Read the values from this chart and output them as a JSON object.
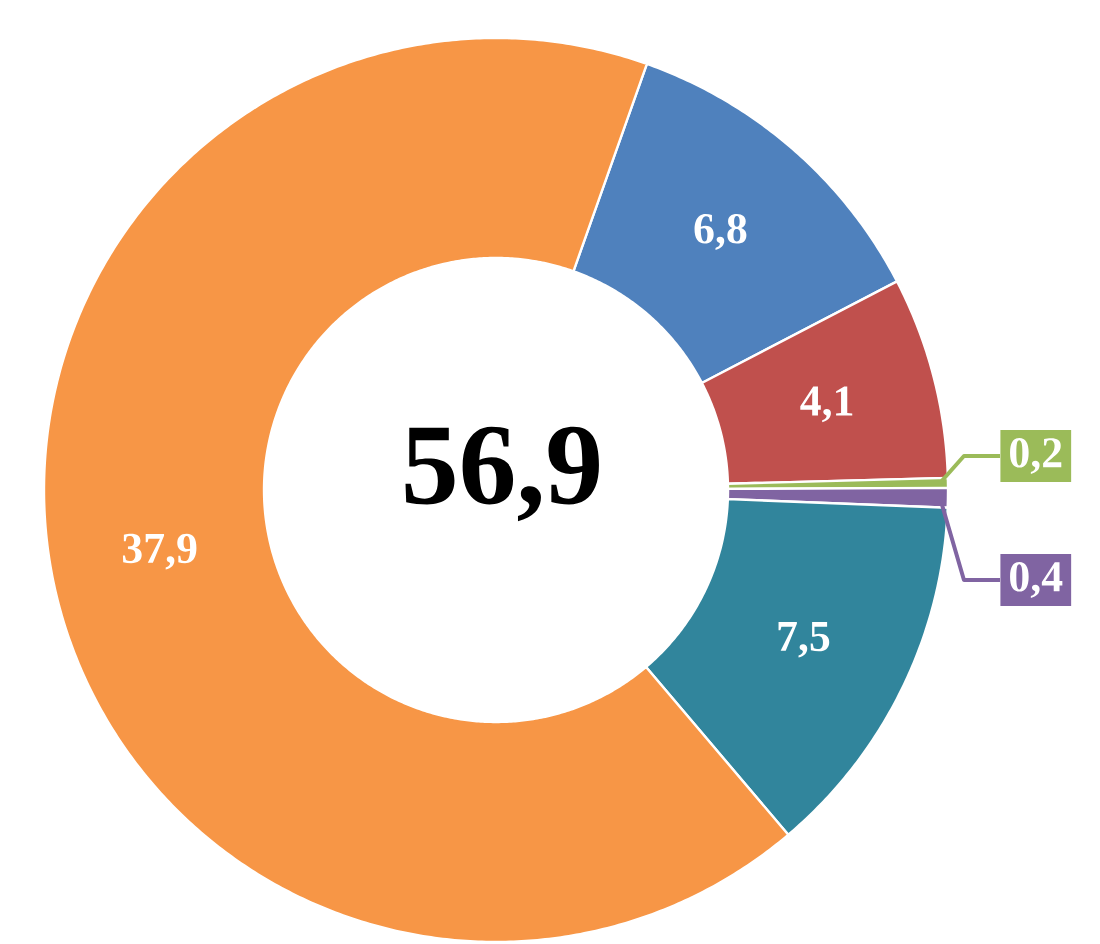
{
  "chart_data": {
    "type": "donut",
    "categories": [
      null,
      null,
      null,
      null,
      null,
      null
    ],
    "values": [
      6.8,
      4.1,
      0.2,
      0.4,
      7.5,
      37.9
    ],
    "colors": [
      "#4f81bd",
      "#c0504d",
      "#9bbb59",
      "#8064a2",
      "#31859c",
      "#f79646"
    ],
    "value_labels": [
      "6,8",
      "4,1",
      "0,2",
      "0,4",
      "7,5",
      "37,9"
    ],
    "annotations": [
      "56,9"
    ]
  }
}
